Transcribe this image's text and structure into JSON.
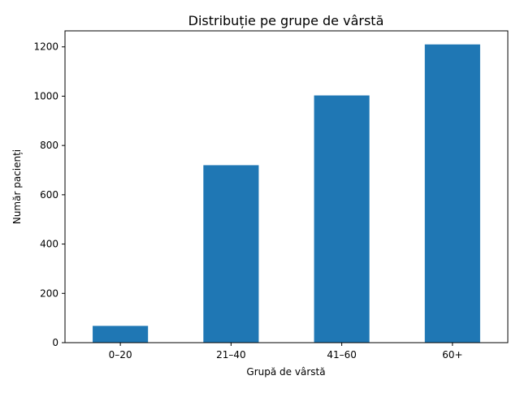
{
  "chart_data": {
    "type": "bar",
    "title": "Distribuție pe grupe de vârstă",
    "xlabel": "Grupă de vârstă",
    "ylabel": "Număr pacienți",
    "categories": [
      "0–20",
      "21–40",
      "41–60",
      "60+"
    ],
    "values": [
      68,
      720,
      1003,
      1210
    ],
    "ylim": [
      0,
      1265
    ],
    "yticks": [
      0,
      200,
      400,
      600,
      800,
      1000,
      1200
    ],
    "grid": false,
    "legend": "none",
    "bar_color": "#1f77b4"
  }
}
